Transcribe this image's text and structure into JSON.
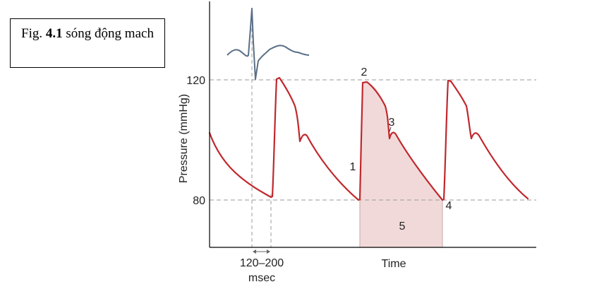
{
  "caption": {
    "prefix": "Fig. ",
    "number": "4.1",
    "text": " sóng động mach"
  },
  "chart_data": {
    "type": "line",
    "xlabel": "Time",
    "ylabel": "Pressure (mmHg)",
    "ylim": [
      58,
      150
    ],
    "yticks": [
      80,
      120
    ],
    "reference_lines": [
      80,
      120
    ],
    "grid": false,
    "interval_label": "120–200 msec",
    "annotations": [
      "1",
      "2",
      "3",
      "4",
      "5"
    ],
    "highlighted_region": "5",
    "colors": {
      "pressure_curve": "#c0282d",
      "ecg_trace": "#5a6f86",
      "region_fill": "#f2d9d9",
      "guide_lines": "#9a9a9a",
      "axis": "#000000"
    }
  }
}
